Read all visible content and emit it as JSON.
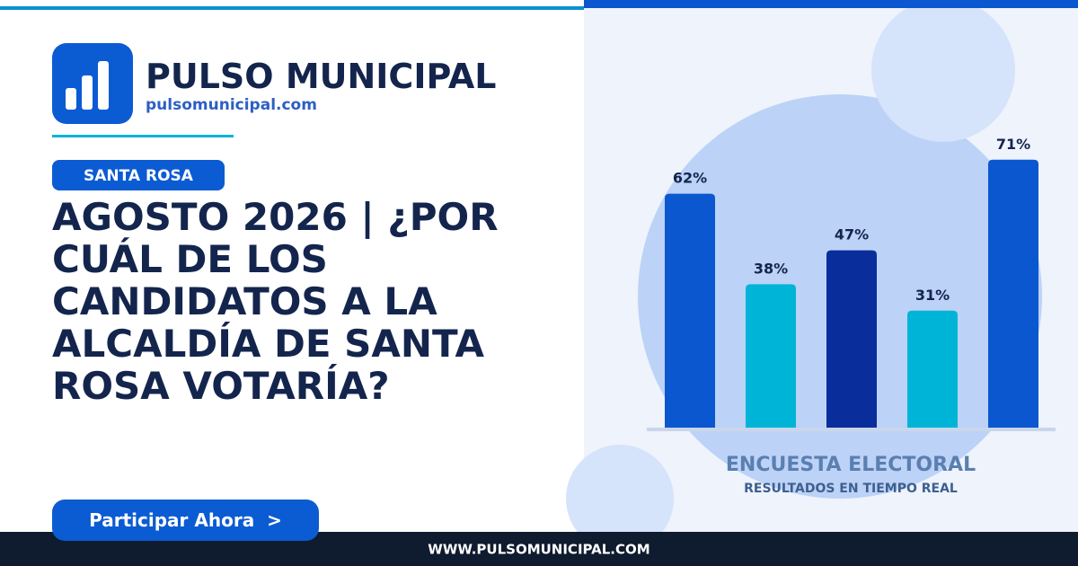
{
  "brand": {
    "name": "PULSO MUNICIPAL",
    "url": "pulsomunicipal.com"
  },
  "tag": "SANTA ROSA",
  "headline": "AGOSTO 2026 | ¿POR CUÁL DE LOS CANDIDATOS A LA ALCALDÍA DE SANTA ROSA VOTARÍA?",
  "button": "Participar Ahora  >",
  "chart": {
    "type": "bar",
    "values": [
      62,
      38,
      47,
      31,
      71
    ],
    "value_labels": [
      "62%",
      "38%",
      "47%",
      "31%",
      "71%"
    ],
    "colors": [
      "#0b57d0",
      "#00b4d8",
      "#0a2d9c",
      "#00b4d8",
      "#0b57d0"
    ],
    "title": "ENCUESTA ELECTORAL",
    "subtitle": "RESULTADOS EN TIEMPO REAL"
  },
  "footer": "WWW.PULSOMUNICIPAL.COM"
}
